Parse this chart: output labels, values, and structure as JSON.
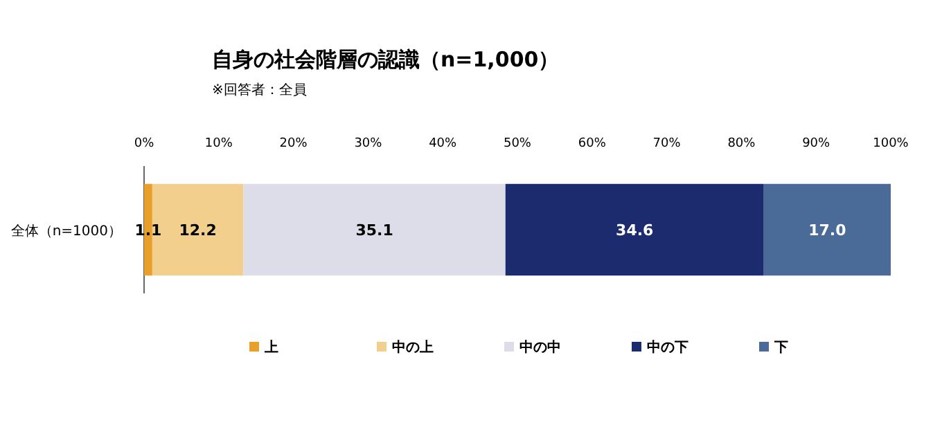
{
  "chart_data": {
    "type": "bar",
    "title": "自身の社会階層の認識（n=1,000）",
    "subtitle": "※回答者：全員",
    "orientation": "horizontal",
    "stacked": true,
    "legend": "bottom",
    "categories": [
      "全体（n=1000）"
    ],
    "xlim": [
      0,
      100
    ],
    "xticks": [
      {
        "value": 0,
        "label": "0%"
      },
      {
        "value": 10,
        "label": "10%"
      },
      {
        "value": 20,
        "label": "20%"
      },
      {
        "value": 30,
        "label": "30%"
      },
      {
        "value": 40,
        "label": "40%"
      },
      {
        "value": 50,
        "label": "50%"
      },
      {
        "value": 60,
        "label": "60%"
      },
      {
        "value": 70,
        "label": "70%"
      },
      {
        "value": 80,
        "label": "80%"
      },
      {
        "value": 90,
        "label": "90%"
      },
      {
        "value": 100,
        "label": "100%"
      }
    ],
    "series": [
      {
        "name": "上",
        "color": "#e8a02a",
        "values": [
          1.1
        ],
        "value_labels": [
          "1.1"
        ]
      },
      {
        "name": "中の上",
        "color": "#f3cf8e",
        "values": [
          12.2
        ],
        "value_labels": [
          "12.2"
        ]
      },
      {
        "name": "中の中",
        "color": "#dcdde9",
        "values": [
          35.1
        ],
        "value_labels": [
          "35.1"
        ]
      },
      {
        "name": "中の下",
        "color": "#1c2a6e",
        "values": [
          34.6
        ],
        "value_labels": [
          "34.6"
        ]
      },
      {
        "name": "下",
        "color": "#4a6a98",
        "values": [
          17.0
        ],
        "value_labels": [
          "17.0"
        ]
      }
    ]
  }
}
